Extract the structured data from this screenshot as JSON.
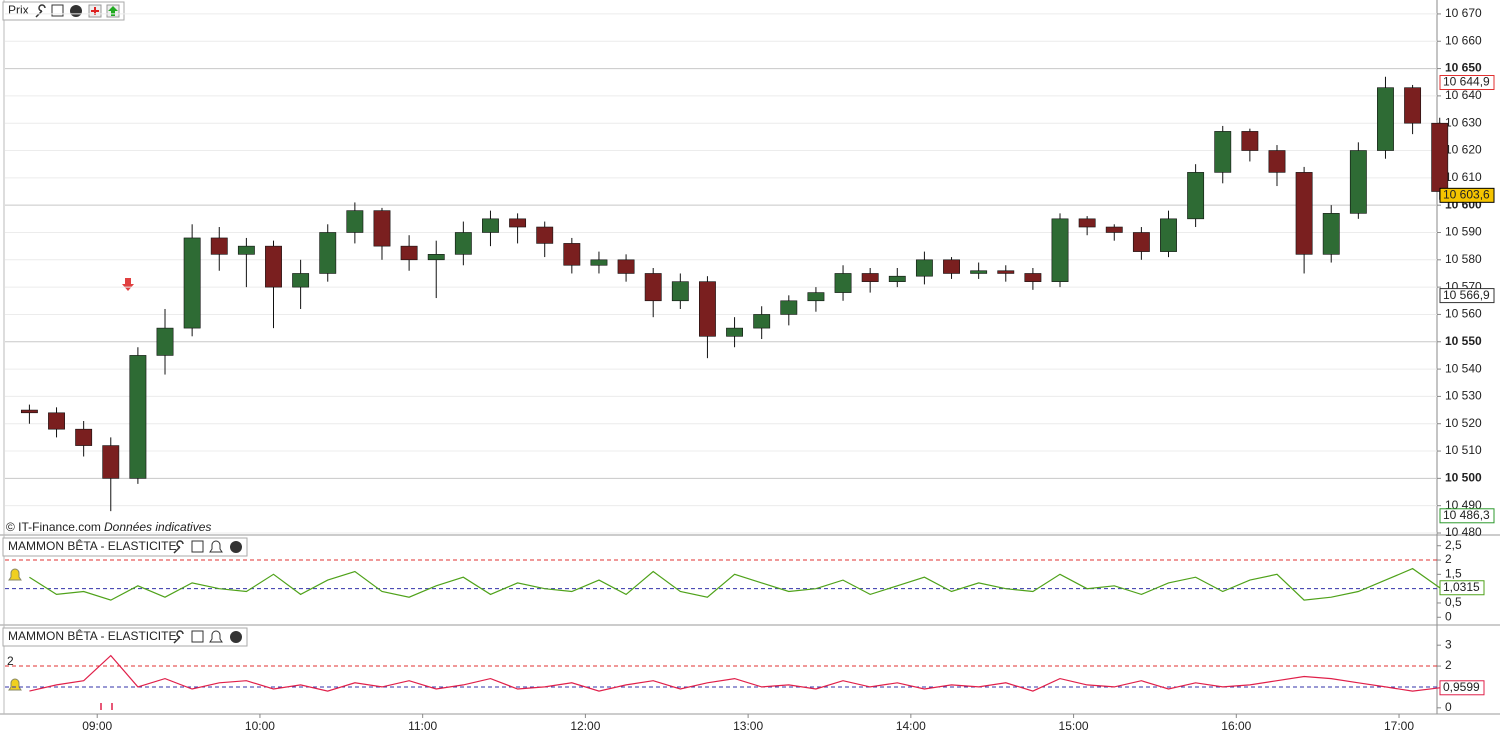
{
  "chart_data": [
    {
      "type": "candlestick",
      "title": "Prix",
      "source": "© IT-Finance.com",
      "note": "Données indicatives",
      "x": [
        "08:30",
        "08:40",
        "08:50",
        "09:00",
        "09:10",
        "09:20",
        "09:30",
        "09:40",
        "09:50",
        "10:00",
        "10:10",
        "10:20",
        "10:30",
        "10:40",
        "10:50",
        "11:00",
        "11:10",
        "11:20",
        "11:30",
        "11:40",
        "11:50",
        "12:00",
        "12:10",
        "12:20",
        "12:30",
        "12:40",
        "12:50",
        "13:00",
        "13:10",
        "13:20",
        "13:30",
        "13:40",
        "13:50",
        "14:00",
        "14:10",
        "14:20",
        "14:30",
        "14:40",
        "14:50",
        "15:00",
        "15:10",
        "15:20",
        "15:30",
        "15:40",
        "15:50",
        "16:00",
        "16:10",
        "16:20",
        "16:30",
        "16:40",
        "16:50",
        "17:00",
        "17:10"
      ],
      "open": [
        10525,
        10524,
        10518,
        10512,
        10500,
        10545,
        10555,
        10588,
        10582,
        10585,
        10570,
        10575,
        10590,
        10598,
        10585,
        10580,
        10582,
        10590,
        10595,
        10592,
        10586,
        10578,
        10580,
        10575,
        10565,
        10572,
        10552,
        10555,
        10560,
        10565,
        10568,
        10575,
        10572,
        10574,
        10580,
        10575,
        10576,
        10575,
        10572,
        10595,
        10592,
        10590,
        10583,
        10595,
        10612,
        10627,
        10620,
        10612,
        10582,
        10597,
        10620,
        10643,
        10630
      ],
      "high": [
        10527,
        10526,
        10521,
        10515,
        10548,
        10562,
        10593,
        10592,
        10588,
        10587,
        10580,
        10593,
        10601,
        10599,
        10589,
        10587,
        10594,
        10598,
        10597,
        10594,
        10588,
        10583,
        10582,
        10577,
        10575,
        10574,
        10559,
        10563,
        10567,
        10570,
        10578,
        10577,
        10577,
        10583,
        10581,
        10579,
        10578,
        10577,
        10597,
        10596,
        10593,
        10592,
        10598,
        10615,
        10629,
        10628,
        10622,
        10614,
        10600,
        10623,
        10647,
        10644,
        10632
      ],
      "low": [
        10520,
        10515,
        10508,
        10488,
        10498,
        10538,
        10552,
        10576,
        10570,
        10555,
        10562,
        10572,
        10586,
        10580,
        10576,
        10566,
        10578,
        10585,
        10586,
        10581,
        10575,
        10575,
        10572,
        10559,
        10562,
        10544,
        10548,
        10551,
        10556,
        10561,
        10565,
        10568,
        10570,
        10571,
        10573,
        10573,
        10572,
        10569,
        10570,
        10589,
        10587,
        10580,
        10581,
        10592,
        10608,
        10616,
        10607,
        10575,
        10579,
        10595,
        10617,
        10626,
        10602
      ],
      "close": [
        10524,
        10518,
        10512,
        10500,
        10545,
        10555,
        10588,
        10582,
        10585,
        10570,
        10575,
        10590,
        10598,
        10585,
        10580,
        10582,
        10590,
        10595,
        10592,
        10586,
        10578,
        10580,
        10575,
        10565,
        10572,
        10552,
        10555,
        10560,
        10565,
        10568,
        10575,
        10572,
        10574,
        10580,
        10575,
        10576,
        10575,
        10572,
        10595,
        10592,
        10590,
        10583,
        10595,
        10612,
        10627,
        10620,
        10612,
        10582,
        10597,
        10620,
        10643,
        10630,
        10605
      ],
      "up_color": "#2e6b34",
      "down_color": "#7a1f1f",
      "wick_color": "#111111",
      "xlim": [
        "08:26",
        "17:14"
      ],
      "xticks": [
        "09:00",
        "10:00",
        "11:00",
        "12:00",
        "13:00",
        "14:00",
        "15:00",
        "16:00",
        "17:00"
      ],
      "ylim": [
        10480,
        10674
      ],
      "yticks": [
        {
          "value": 10480,
          "label": "10 480"
        },
        {
          "value": 10490,
          "label": "10 490"
        },
        {
          "value": 10500,
          "label": "10 500"
        },
        {
          "value": 10510,
          "label": "10 510"
        },
        {
          "value": 10520,
          "label": "10 520"
        },
        {
          "value": 10530,
          "label": "10 530"
        },
        {
          "value": 10540,
          "label": "10 540"
        },
        {
          "value": 10550,
          "label": "10 550"
        },
        {
          "value": 10560,
          "label": "10 560"
        },
        {
          "value": 10570,
          "label": "10 570"
        },
        {
          "value": 10580,
          "label": "10 580"
        },
        {
          "value": 10590,
          "label": "10 590"
        },
        {
          "value": 10600,
          "label": "10 600"
        },
        {
          "value": 10610,
          "label": "10 610"
        },
        {
          "value": 10620,
          "label": "10 620"
        },
        {
          "value": 10630,
          "label": "10 630"
        },
        {
          "value": 10640,
          "label": "10 640"
        },
        {
          "value": 10650,
          "label": "10 650"
        },
        {
          "value": 10660,
          "label": "10 660"
        },
        {
          "value": 10670,
          "label": "10 670"
        }
      ],
      "grid": true,
      "price_labels": [
        {
          "value": 10644.9,
          "label": "10 644,9",
          "color": "#e03030",
          "fill": "#ffffff"
        },
        {
          "value": 10603.6,
          "label": "10 603,6",
          "color": "#000000",
          "fill": "#f5c400"
        },
        {
          "value": 10566.9,
          "label": "10 566,9",
          "color": "#333333",
          "fill": "#ffffff"
        },
        {
          "value": 10486.3,
          "label": "10 486,3",
          "color": "#2e9a2e",
          "fill": "#ffffff"
        }
      ]
    },
    {
      "type": "line",
      "title": "MAMMON BÊTA - ELASTICITE",
      "color": "#4fa21a",
      "values": [
        1.4,
        0.8,
        0.9,
        0.6,
        1.1,
        0.7,
        1.2,
        1.0,
        0.9,
        1.5,
        0.8,
        1.3,
        1.6,
        0.9,
        0.7,
        1.1,
        1.4,
        0.8,
        1.2,
        1.0,
        0.9,
        1.3,
        0.8,
        1.6,
        0.9,
        0.7,
        1.5,
        1.2,
        0.9,
        1.0,
        1.3,
        0.8,
        1.1,
        1.4,
        0.9,
        1.2,
        1.0,
        0.9,
        1.5,
        1.0,
        1.1,
        0.8,
        1.2,
        1.4,
        0.9,
        1.3,
        1.5,
        0.6,
        0.7,
        0.9,
        1.3,
        1.7,
        1.0315
      ],
      "ylim": [
        -0.2,
        2.7
      ],
      "yticks": [
        {
          "value": 2.5,
          "label": "2,5"
        },
        2,
        {
          "value": 1.5,
          "label": "1,5"
        },
        {
          "value": 0.5,
          "label": "0,5"
        },
        0
      ],
      "levels": [
        {
          "value": 2,
          "color": "#e03030"
        },
        {
          "value": 1,
          "color": "#3333aa"
        }
      ],
      "last_value": {
        "value": 1.0315,
        "label": "1,0315"
      }
    },
    {
      "type": "line",
      "title": "MAMMON BÊTA - ELASTICITE",
      "color": "#e0204a",
      "values": [
        0.8,
        1.1,
        1.3,
        2.5,
        1.0,
        1.4,
        0.9,
        1.2,
        1.3,
        0.9,
        1.1,
        0.8,
        1.2,
        1.0,
        1.3,
        0.9,
        1.1,
        1.4,
        0.9,
        1.0,
        1.2,
        0.8,
        1.1,
        1.3,
        0.9,
        1.2,
        1.4,
        1.0,
        1.1,
        0.9,
        1.3,
        1.0,
        1.2,
        0.9,
        1.1,
        1.0,
        1.2,
        0.8,
        1.4,
        1.1,
        1.0,
        1.3,
        0.9,
        1.2,
        1.0,
        1.1,
        1.3,
        1.5,
        1.4,
        1.2,
        1.0,
        0.8,
        0.9599
      ],
      "ylim": [
        -0.2,
        3.2
      ],
      "yticks": [
        3,
        2,
        0
      ],
      "levels": [
        {
          "value": 2,
          "color": "#e03030"
        },
        {
          "value": 1,
          "color": "#3333aa"
        }
      ],
      "last_value": {
        "value": 0.9599,
        "label": "0,9599"
      }
    }
  ]
}
